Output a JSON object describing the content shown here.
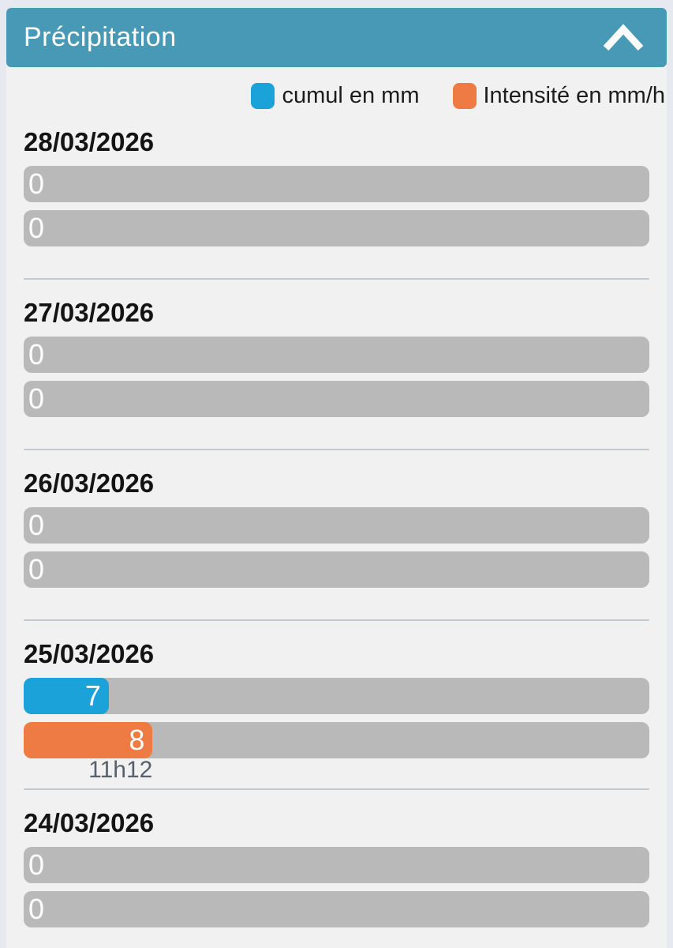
{
  "header": {
    "title": "Précipitation",
    "collapse_icon": "chevron-up"
  },
  "colors": {
    "header_bg": "#4799b6",
    "cumul": "#1ba3d9",
    "intensite": "#ee7a44",
    "track": "#b9b9b9",
    "panel_bg": "#f1f1f2",
    "outer_bg": "#e7e9f1"
  },
  "legend": {
    "cumul_label": "cumul en mm",
    "intensite_label": "Intensité en mm/h"
  },
  "sections": [
    {
      "date": "28/03/2026",
      "cumul": {
        "value": "0",
        "fill_percent": 0
      },
      "intensite": {
        "value": "0",
        "fill_percent": 0
      }
    },
    {
      "date": "27/03/2026",
      "cumul": {
        "value": "0",
        "fill_percent": 0
      },
      "intensite": {
        "value": "0",
        "fill_percent": 0
      }
    },
    {
      "date": "26/03/2026",
      "cumul": {
        "value": "0",
        "fill_percent": 0
      },
      "intensite": {
        "value": "0",
        "fill_percent": 0
      }
    },
    {
      "date": "25/03/2026",
      "cumul": {
        "value": "7",
        "fill_percent": 13.6
      },
      "intensite": {
        "value": "8",
        "fill_percent": 20.6
      },
      "time": "11h12"
    },
    {
      "date": "24/03/2026",
      "cumul": {
        "value": "0",
        "fill_percent": 0
      },
      "intensite": {
        "value": "0",
        "fill_percent": 0
      }
    }
  ],
  "chart_data": {
    "type": "bar",
    "orientation": "horizontal",
    "title": "Précipitation",
    "categories": [
      "28/03/2026",
      "27/03/2026",
      "26/03/2026",
      "25/03/2026",
      "24/03/2026"
    ],
    "series": [
      {
        "name": "cumul en mm",
        "color": "#1ba3d9",
        "values": [
          0,
          0,
          0,
          7,
          0
        ]
      },
      {
        "name": "Intensité en mm/h",
        "color": "#ee7a44",
        "values": [
          0,
          0,
          0,
          8,
          0
        ]
      }
    ],
    "annotations": [
      {
        "category": "25/03/2026",
        "series": "Intensité en mm/h",
        "label": "11h12"
      }
    ],
    "legend_position": "top-right"
  }
}
